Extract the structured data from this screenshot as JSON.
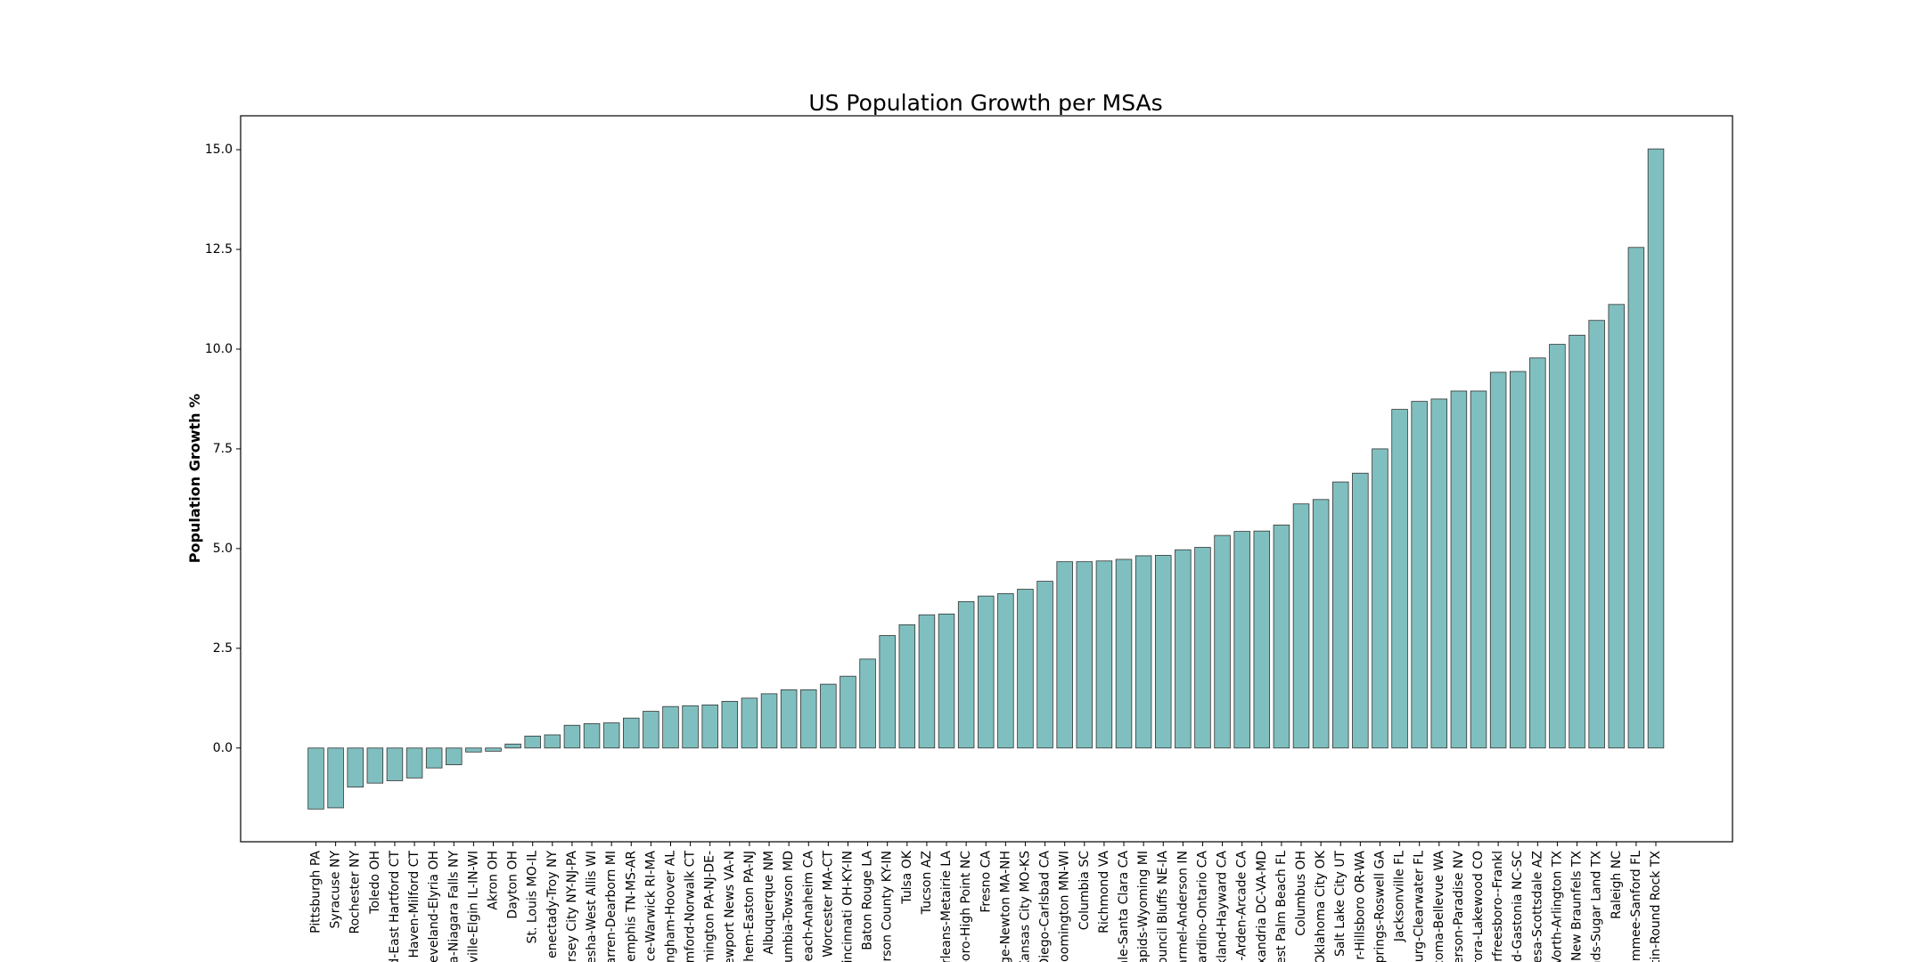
{
  "chart_data": {
    "type": "bar",
    "title": "US Population Growth per MSAs",
    "xlabel": "",
    "ylabel": "Population Growth %",
    "ylim": [
      -2.35,
      15.85
    ],
    "yticks": [
      0.0,
      2.5,
      5.0,
      7.5,
      10.0,
      12.5,
      15.0
    ],
    "ytick_labels": [
      "0.0",
      "2.5",
      "5.0",
      "7.5",
      "10.0",
      "12.5",
      "15.0"
    ],
    "grid": false,
    "bar_color": "#80bfbf",
    "edge_color": "#333333",
    "categories": [
      "Pittsburgh PA",
      "Syracuse NY",
      "Rochester NY",
      "Toledo OH",
      "d-East Hartford CT",
      "Haven-Milford CT",
      "eveland-Elyria OH",
      "a-Niagara Falls NY",
      "ville-Elgin IL-IN-WI",
      "Akron OH",
      "Dayton OH",
      "St. Louis MO-IL",
      "enectady-Troy NY",
      "ersey City NY-NJ-PA",
      "esha-West Allis WI",
      "arren-Dearborn MI",
      "emphis TN-MS-AR",
      "ce-Warwick RI-MA",
      "ngham-Hoover AL",
      "mford-Norwalk CT",
      "mington PA-NJ-DE-",
      "ewport News VA-N",
      "hem-Easton PA-NJ",
      "Albuquerque NM",
      "umbia-Towson MD",
      "each-Anaheim CA",
      "Worcester MA-CT",
      "incinnati OH-KY-IN",
      "Baton Rouge LA",
      "rson County KY-IN",
      "Tulsa OK",
      "Tucson AZ",
      "rleans-Metairie LA",
      "boro-High Point NC",
      "Fresno CA",
      "ge-Newton MA-NH",
      "Kansas City MO-KS",
      "Diego-Carlsbad CA",
      "oomington MN-WI",
      "Columbia SC",
      "Richmond VA",
      "ale-Santa Clara CA",
      "apids-Wyoming MI",
      "ouncil Bluffs NE-IA",
      "armel-Anderson IN",
      "ardino-Ontario CA",
      "kland-Hayward CA",
      "-Arden-Arcade CA",
      "xandria DC-VA-MD",
      "est Palm Beach FL",
      "Columbus OH",
      "Oklahoma City OK",
      "Salt Lake City UT",
      "r-Hillsboro OR-WA",
      "prings-Roswell GA",
      "Jacksonville FL",
      "urg-Clearwater FL",
      "coma-Bellevue WA",
      "erson-Paradise NV",
      "rora-Lakewood CO",
      "rfreesboro--Frankl",
      "d-Gastonia NC-SC",
      "esa-Scottsdale AZ",
      "Vorth-Arlington TX",
      "New Braunfels TX",
      "nds-Sugar Land TX",
      "Raleigh NC",
      "immee-Sanford FL",
      "tin-Round Rock TX"
    ],
    "values": [
      -1.53,
      -1.5,
      -0.98,
      -0.88,
      -0.82,
      -0.75,
      -0.5,
      -0.42,
      -0.1,
      -0.08,
      0.1,
      0.3,
      0.33,
      0.57,
      0.61,
      0.63,
      0.75,
      0.92,
      1.04,
      1.06,
      1.08,
      1.17,
      1.25,
      1.36,
      1.46,
      1.46,
      1.6,
      1.8,
      2.23,
      2.82,
      3.09,
      3.34,
      3.36,
      3.67,
      3.81,
      3.87,
      3.98,
      4.18,
      4.67,
      4.67,
      4.69,
      4.73,
      4.82,
      4.83,
      4.97,
      5.03,
      5.33,
      5.43,
      5.44,
      5.59,
      6.12,
      6.23,
      6.67,
      6.89,
      7.5,
      8.49,
      8.69,
      8.75,
      8.95,
      8.95,
      9.42,
      9.44,
      9.78,
      10.12,
      10.35,
      10.72,
      11.12,
      12.55,
      15.02
    ]
  }
}
